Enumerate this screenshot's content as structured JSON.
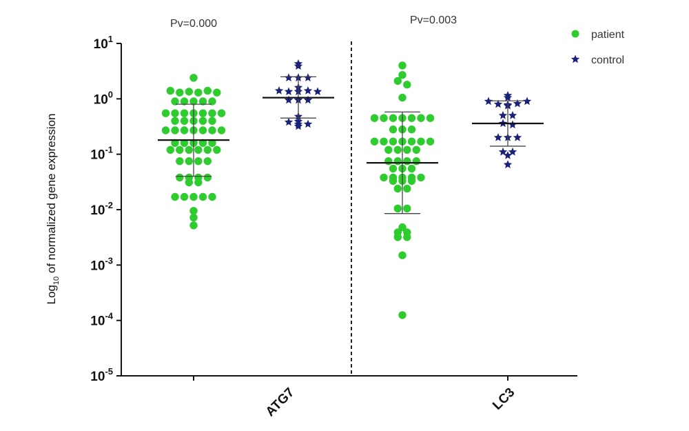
{
  "chart_data": {
    "type": "scatter",
    "ylabel_prefix": "Log",
    "ylabel_sub": "10",
    "ylabel_suffix": " of normalized gene expression",
    "y_scale": "log",
    "ylim": [
      1e-05,
      10
    ],
    "y_tick_exponents": [
      1,
      0,
      -1,
      -2,
      -3,
      -4,
      -5
    ],
    "y_tick_base": "10",
    "categories": [
      "ATG7",
      "LC3"
    ],
    "pvalues": [
      "Pv=0.000",
      "Pv=0.003"
    ],
    "colors": {
      "patient": "#2ecc2e",
      "control": "#1a2178"
    },
    "legend": [
      {
        "name": "patient",
        "marker": "circle",
        "color": "#2ecc2e"
      },
      {
        "name": "control",
        "marker": "star",
        "color": "#1a2178"
      }
    ],
    "legend_position": "top-right",
    "groups": [
      {
        "category": "ATG7",
        "series": "patient",
        "marker": "circle",
        "mean": 0.18,
        "lower": 0.04,
        "upper": 0.8,
        "values": [
          2.4,
          1.4,
          1.3,
          1.35,
          1.3,
          1.4,
          1.3,
          0.9,
          0.9,
          0.9,
          0.9,
          0.9,
          0.55,
          0.55,
          0.55,
          0.55,
          0.55,
          0.55,
          0.55,
          0.4,
          0.4,
          0.4,
          0.4,
          0.4,
          0.27,
          0.27,
          0.27,
          0.27,
          0.27,
          0.27,
          0.27,
          0.16,
          0.16,
          0.16,
          0.16,
          0.16,
          0.12,
          0.12,
          0.12,
          0.12,
          0.12,
          0.12,
          0.075,
          0.075,
          0.075,
          0.075,
          0.038,
          0.038,
          0.038,
          0.038,
          0.031,
          0.031,
          0.017,
          0.017,
          0.017,
          0.017,
          0.017,
          0.0095,
          0.0072,
          0.0052
        ]
      },
      {
        "category": "ATG7",
        "series": "control",
        "marker": "star",
        "mean": 1.05,
        "lower": 0.45,
        "upper": 2.5,
        "values": [
          4.3,
          3.9,
          2.4,
          2.4,
          2.4,
          1.6,
          1.4,
          1.35,
          1.35,
          1.4,
          1.35,
          0.95,
          0.95,
          0.95,
          0.48,
          0.38,
          0.35,
          0.32,
          0.35,
          0.39
        ]
      },
      {
        "category": "LC3",
        "series": "patient",
        "marker": "circle",
        "mean": 0.07,
        "lower": 0.0085,
        "upper": 0.58,
        "values": [
          4.0,
          2.7,
          2.1,
          1.8,
          1.05,
          0.45,
          0.45,
          0.45,
          0.45,
          0.45,
          0.45,
          0.45,
          0.28,
          0.28,
          0.28,
          0.17,
          0.17,
          0.17,
          0.17,
          0.17,
          0.17,
          0.17,
          0.12,
          0.12,
          0.12,
          0.12,
          0.075,
          0.075,
          0.075,
          0.075,
          0.055,
          0.055,
          0.055,
          0.038,
          0.038,
          0.038,
          0.038,
          0.038,
          0.033,
          0.033,
          0.033,
          0.024,
          0.024,
          0.0105,
          0.0105,
          0.0048,
          0.0039,
          0.0039,
          0.0032,
          0.0032,
          0.0015,
          0.000125
        ]
      },
      {
        "category": "LC3",
        "series": "control",
        "marker": "star",
        "mean": 0.36,
        "lower": 0.14,
        "upper": 0.92,
        "values": [
          1.15,
          1.05,
          0.9,
          0.8,
          0.78,
          0.75,
          0.82,
          0.9,
          0.5,
          0.5,
          0.36,
          0.34,
          0.2,
          0.2,
          0.2,
          0.11,
          0.11,
          0.095,
          0.065
        ]
      }
    ]
  }
}
